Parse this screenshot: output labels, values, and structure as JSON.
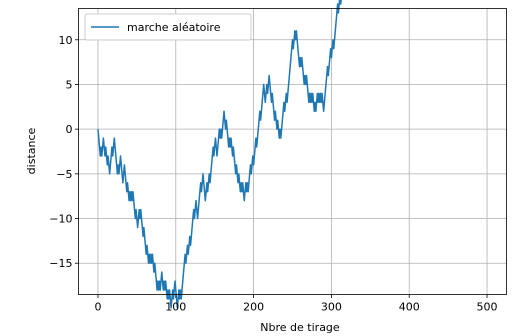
{
  "chart_data": {
    "type": "line",
    "title": "",
    "xlabel": "Nbre de tirage",
    "ylabel": "distance",
    "xlim": [
      -25,
      525
    ],
    "ylim": [
      -18.5,
      13.5
    ],
    "xticks": [
      0,
      100,
      200,
      300,
      400,
      500
    ],
    "yticks": [
      -15,
      -10,
      -5,
      0,
      5,
      10
    ],
    "xtick_labels": [
      "0",
      "100",
      "200",
      "300",
      "400",
      "500"
    ],
    "ytick_labels": [
      "−15",
      "−10",
      "−5",
      "0",
      "5",
      "10"
    ],
    "grid": true,
    "legend_position": "top-left",
    "colors": {
      "series": "#1f77b4",
      "grid": "#b0b0b0",
      "axis": "#000000"
    },
    "series": [
      {
        "name": "marche aléatoire",
        "steps": [
          -1,
          -1,
          -1,
          1,
          -1,
          1,
          1,
          -1,
          -1,
          1,
          -1,
          -1,
          1,
          -1,
          -1,
          1,
          1,
          1,
          -1,
          1,
          1,
          -1,
          -1,
          -1,
          -1,
          1,
          -1,
          1,
          1,
          -1,
          -1,
          -1,
          1,
          1,
          -1,
          -1,
          -1,
          1,
          -1,
          -1,
          1,
          -1,
          1,
          -1,
          1,
          -1,
          -1,
          -1,
          1,
          -1,
          -1,
          1,
          1,
          -1,
          1,
          -1,
          -1,
          -1,
          1,
          -1,
          -1,
          -1,
          1,
          -1,
          -1,
          1,
          -1,
          1,
          -1,
          1,
          -1,
          -1,
          1,
          -1,
          -1,
          -1,
          1,
          -1,
          1,
          -1,
          1,
          1,
          -1,
          -1,
          1,
          -1,
          1,
          -1,
          -1,
          1,
          -1,
          1,
          -1,
          -1,
          1,
          1,
          -1,
          1,
          1,
          -1,
          -1,
          -1,
          1,
          1,
          -1,
          1,
          -1,
          1,
          1,
          1,
          1,
          1,
          -1,
          1,
          1,
          -1,
          1,
          1,
          -1,
          1,
          1,
          1,
          1,
          -1,
          1,
          1,
          -1,
          -1,
          1,
          1,
          1,
          1,
          -1,
          1,
          1,
          -1,
          -1,
          -1,
          1,
          1,
          -1,
          1,
          1,
          -1,
          1,
          1,
          1,
          1,
          -1,
          1,
          1,
          -1,
          -1,
          1,
          1,
          1,
          -1,
          1,
          -1,
          1,
          1,
          1,
          -1,
          -1,
          1,
          -1,
          -1,
          -1,
          1,
          -1,
          1,
          -1,
          -1,
          1,
          -1,
          -1,
          -1,
          1,
          -1,
          -1,
          1,
          -1,
          -1,
          1,
          -1,
          1,
          -1,
          -1,
          1,
          1,
          -1,
          1,
          -1,
          1,
          1,
          1,
          -1,
          1,
          1,
          -1,
          1,
          1,
          1,
          -1,
          1,
          1,
          1,
          1,
          -1,
          1,
          1,
          1,
          1,
          -1,
          -1,
          1,
          1,
          -1,
          1,
          1,
          -1,
          -1,
          -1,
          1,
          -1,
          -1,
          -1,
          1,
          -1,
          -1,
          1,
          -1,
          -1,
          1,
          -1,
          1,
          1,
          1,
          1,
          -1,
          1,
          1,
          -1,
          1,
          1,
          1,
          1,
          1,
          1,
          1,
          -1,
          1,
          1,
          -1,
          1,
          -1,
          -1,
          -1,
          -1,
          1,
          -1,
          1,
          -1,
          -1,
          -1,
          1,
          -1,
          1,
          -1,
          -1,
          -1,
          1,
          -1,
          1,
          -1,
          1,
          -1,
          -1,
          1,
          -1,
          1,
          1,
          -1,
          1,
          -1,
          1,
          -1,
          1,
          -1,
          -1,
          1,
          1,
          1,
          1,
          1,
          -1,
          1,
          1,
          1,
          -1,
          1,
          1,
          -1,
          1,
          1,
          1,
          1,
          1,
          -1,
          1,
          1,
          -1,
          1,
          1,
          1,
          1,
          -1,
          1,
          -1,
          1,
          1,
          -1,
          -1,
          -1,
          1,
          -1,
          1,
          1,
          -1,
          -1,
          1,
          -1,
          -1,
          1,
          -1,
          1,
          -1,
          1,
          -1,
          1,
          1,
          1,
          1,
          1,
          1,
          1,
          -1,
          1,
          1,
          1,
          -1,
          1,
          1,
          1,
          1,
          -1,
          1,
          -1,
          1,
          1,
          -1,
          -1,
          -1,
          1,
          -1,
          -1,
          1,
          1,
          -1,
          -1,
          -1,
          1,
          1,
          -1,
          1,
          -1,
          -1,
          1,
          1,
          1,
          1,
          -1,
          1,
          1,
          1,
          1,
          1,
          -1,
          -1,
          1,
          1,
          -1,
          1,
          -1,
          1,
          -1,
          -1,
          1,
          1,
          1,
          -1,
          1,
          -1,
          -1,
          -1,
          1,
          -1,
          -1,
          1,
          -1,
          1,
          1,
          -1,
          -1,
          1,
          -1,
          -1,
          1,
          1,
          -1,
          -1,
          1,
          -1,
          1,
          1,
          1,
          1,
          -1,
          1,
          -1,
          1,
          1,
          -1,
          1,
          1,
          -1,
          -1,
          1,
          -1,
          -1,
          -1,
          1,
          -1,
          -1,
          1,
          -1,
          1,
          -1,
          -1,
          -1,
          -1,
          1,
          -1,
          1,
          -1,
          1,
          1,
          1,
          1,
          1,
          1,
          1,
          1,
          1,
          1,
          -1,
          1,
          1,
          1,
          1,
          -1,
          1,
          -1,
          1,
          -1,
          1,
          1,
          1,
          1,
          1,
          1,
          1,
          1,
          -1,
          1,
          1,
          -1,
          1,
          1,
          -1,
          1,
          1,
          1,
          -1,
          -1,
          1,
          1,
          -1,
          -1,
          -1,
          -1,
          -1,
          1,
          -1,
          -1
        ]
      }
    ]
  }
}
